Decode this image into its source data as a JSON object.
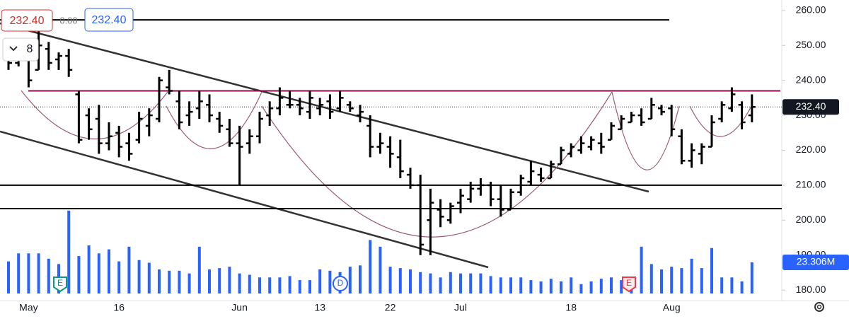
{
  "chart_data": {
    "type": "ohlc",
    "x": [
      null,
      null,
      "May",
      null,
      null,
      null,
      null,
      null,
      null,
      null,
      null,
      "16",
      null,
      null,
      null,
      null,
      null,
      null,
      null,
      null,
      null,
      null,
      null,
      "Jun",
      null,
      null,
      null,
      null,
      null,
      null,
      null,
      "13",
      null,
      null,
      null,
      null,
      null,
      null,
      "22",
      null,
      null,
      null,
      null,
      null,
      null,
      "Jul",
      null,
      null,
      null,
      null,
      null,
      null,
      null,
      null,
      null,
      null,
      "18",
      null,
      null,
      null,
      null,
      null,
      null,
      null,
      null,
      null,
      "Aug",
      null,
      null,
      null,
      null,
      null,
      null,
      null,
      null
    ],
    "open": [
      246,
      245,
      247,
      243,
      249,
      246,
      247,
      236,
      230,
      229,
      222,
      225,
      222,
      223,
      227,
      229,
      238,
      234,
      230,
      232,
      233,
      229,
      226,
      222,
      222,
      224,
      230,
      232,
      233,
      233,
      231,
      232,
      234,
      232,
      233,
      230,
      227,
      221,
      221,
      218,
      213,
      210,
      200,
      203,
      200,
      205,
      206,
      209,
      210,
      206,
      203,
      208,
      211,
      213,
      212,
      216,
      219,
      220,
      221,
      222,
      223,
      226,
      228,
      230,
      229,
      232,
      232,
      224,
      217,
      219,
      221,
      229,
      232,
      233,
      230
    ],
    "high": [
      248,
      250,
      251,
      255,
      251,
      248,
      249,
      237,
      232,
      233,
      228,
      227,
      225,
      231,
      232,
      241,
      243,
      237,
      234,
      237,
      236,
      231,
      229,
      227,
      226,
      231,
      234,
      238,
      237,
      235,
      237,
      235,
      236,
      237,
      234,
      233,
      230,
      225,
      224,
      223,
      215,
      213,
      209,
      206,
      205,
      209,
      211,
      212,
      211,
      210,
      209,
      213,
      217,
      215,
      217,
      221,
      222,
      224,
      224,
      225,
      228,
      230,
      231,
      232,
      235,
      233,
      233,
      226,
      222,
      222,
      230,
      234,
      238,
      234,
      236
    ],
    "low": [
      243,
      244,
      238,
      243,
      243,
      243,
      241,
      222,
      223,
      219,
      220,
      218,
      217,
      222,
      224,
      228,
      236,
      226,
      227,
      229,
      228,
      225,
      221,
      210,
      219,
      222,
      227,
      230,
      232,
      230,
      229,
      230,
      229,
      231,
      231,
      228,
      218,
      219,
      215,
      212,
      209,
      190,
      190,
      198,
      199,
      202,
      205,
      207,
      204,
      201,
      203,
      207,
      210,
      211,
      212,
      216,
      218,
      219,
      220,
      219,
      223,
      226,
      228,
      227,
      229,
      230,
      224,
      216,
      215,
      216,
      221,
      228,
      231,
      226,
      228
    ],
    "close": [
      245,
      247,
      240,
      250,
      245,
      247,
      243,
      223,
      226,
      222,
      224,
      221,
      219,
      229,
      230,
      240,
      237,
      228,
      231,
      234,
      230,
      227,
      222,
      221,
      224,
      229,
      232,
      235,
      233,
      232,
      235,
      233,
      231,
      235,
      232,
      231,
      221,
      222,
      219,
      214,
      210,
      193,
      205,
      201,
      204,
      207,
      209,
      210,
      206,
      203,
      208,
      212,
      214,
      212,
      216,
      220,
      221,
      222,
      223,
      221,
      227,
      229,
      230,
      228,
      233,
      231,
      226,
      217,
      220,
      221,
      228,
      233,
      236,
      228,
      232.4
    ],
    "color": "#000000",
    "legend": [
      "232.40",
      "0.00",
      "232.40"
    ],
    "interval": "8",
    "last_price": {
      "value": 232.4,
      "label": "232.40"
    },
    "levels": [
      {
        "value": 257.3,
        "color": "#000000"
      },
      {
        "value": 237,
        "color": "#880e4f"
      },
      {
        "value": 210,
        "color": "#000000"
      },
      {
        "value": 203.3,
        "color": "#000000"
      }
    ],
    "volume": {
      "color": "#2962ff",
      "values": [
        24,
        30,
        30,
        30,
        26,
        22,
        62,
        28,
        36,
        30,
        33,
        24,
        35,
        25,
        23,
        18,
        17,
        17,
        15,
        35,
        18,
        19,
        20,
        15,
        14,
        12,
        12,
        12,
        13,
        10,
        10,
        18,
        17,
        16,
        20,
        21,
        40,
        35,
        20,
        19,
        18,
        16,
        15,
        12,
        16,
        15,
        15,
        15,
        13,
        12,
        12,
        12,
        10,
        9,
        11,
        9,
        12,
        7,
        9,
        11,
        12,
        10,
        10,
        35,
        22,
        18,
        20,
        19,
        26,
        19,
        34,
        12,
        12,
        9,
        23.306
      ],
      "last": {
        "value": 23.306,
        "label": "23.306M"
      }
    },
    "events": [
      "E",
      "D",
      "E"
    ],
    "ylim": [
      177,
      263
    ],
    "yticks": [
      {
        "value": 180,
        "label": "180.00"
      },
      {
        "value": 190,
        "label": "190.00"
      },
      {
        "value": 200,
        "label": "200.00"
      },
      {
        "value": 210,
        "label": "210.00"
      },
      {
        "value": 220,
        "label": "220.00"
      },
      {
        "value": 230,
        "label": "230.00"
      },
      {
        "value": 240,
        "label": "240.00"
      },
      {
        "value": 250,
        "label": "250.00"
      },
      {
        "value": 260,
        "label": "260.00"
      }
    ]
  }
}
